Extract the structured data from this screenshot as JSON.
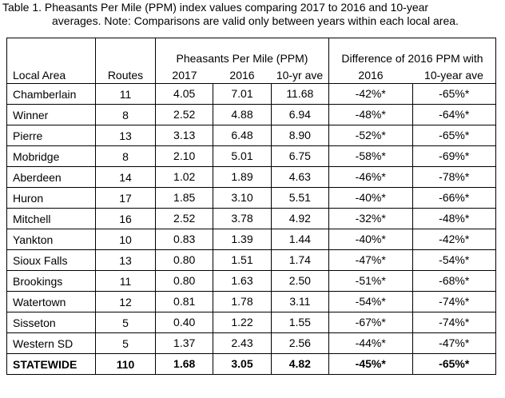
{
  "caption": {
    "line1": "Table 1.  Pheasants Per Mile (PPM) index values comparing 2017 to 2016 and 10-year",
    "line2": "averages.  Note: Comparisons are valid only between years within each local area."
  },
  "headers": {
    "local_area": "Local Area",
    "routes": "Routes",
    "ppm_group": "Pheasants Per Mile (PPM)",
    "ppm_2017": "2017",
    "ppm_2016": "2016",
    "ppm_10yr": "10-yr ave",
    "diff_group": "Difference of 2016 PPM with",
    "diff_2016": "2016",
    "diff_10yr": "10-year ave"
  },
  "rows": [
    {
      "area": "Chamberlain",
      "routes": "11",
      "p2017": "4.05",
      "p2016": "7.01",
      "p10": "11.68",
      "d2016": "-42%*",
      "d10": "-65%*"
    },
    {
      "area": "Winner",
      "routes": "8",
      "p2017": "2.52",
      "p2016": "4.88",
      "p10": "6.94",
      "d2016": "-48%*",
      "d10": "-64%*"
    },
    {
      "area": "Pierre",
      "routes": "13",
      "p2017": "3.13",
      "p2016": "6.48",
      "p10": "8.90",
      "d2016": "-52%*",
      "d10": "-65%*"
    },
    {
      "area": "Mobridge",
      "routes": "8",
      "p2017": "2.10",
      "p2016": "5.01",
      "p10": "6.75",
      "d2016": "-58%*",
      "d10": "-69%*"
    },
    {
      "area": "Aberdeen",
      "routes": "14",
      "p2017": "1.02",
      "p2016": "1.89",
      "p10": "4.63",
      "d2016": "-46%*",
      "d10": "-78%*"
    },
    {
      "area": "Huron",
      "routes": "17",
      "p2017": "1.85",
      "p2016": "3.10",
      "p10": "5.51",
      "d2016": "-40%*",
      "d10": "-66%*"
    },
    {
      "area": "Mitchell",
      "routes": "16",
      "p2017": "2.52",
      "p2016": "3.78",
      "p10": "4.92",
      "d2016": "-32%*",
      "d10": "-48%*"
    },
    {
      "area": "Yankton",
      "routes": "10",
      "p2017": "0.83",
      "p2016": "1.39",
      "p10": "1.44",
      "d2016": "-40%*",
      "d10": "-42%*"
    },
    {
      "area": "Sioux Falls",
      "routes": "13",
      "p2017": "0.80",
      "p2016": "1.51",
      "p10": "1.74",
      "d2016": "-47%*",
      "d10": "-54%*"
    },
    {
      "area": "Brookings",
      "routes": "11",
      "p2017": "0.80",
      "p2016": "1.63",
      "p10": "2.50",
      "d2016": "-51%*",
      "d10": "-68%*"
    },
    {
      "area": "Watertown",
      "routes": "12",
      "p2017": "0.81",
      "p2016": "1.78",
      "p10": "3.11",
      "d2016": "-54%*",
      "d10": "-74%*"
    },
    {
      "area": "Sisseton",
      "routes": "5",
      "p2017": "0.40",
      "p2016": "1.22",
      "p10": "1.55",
      "d2016": "-67%*",
      "d10": "-74%*"
    },
    {
      "area": "Western SD",
      "routes": "5",
      "p2017": "1.37",
      "p2016": "2.43",
      "p10": "2.56",
      "d2016": "-44%*",
      "d10": "-47%*"
    }
  ],
  "total": {
    "area": "STATEWIDE",
    "routes": "110",
    "p2017": "1.68",
    "p2016": "3.05",
    "p10": "4.82",
    "d2016": "-45%*",
    "d10": "-65%*"
  }
}
